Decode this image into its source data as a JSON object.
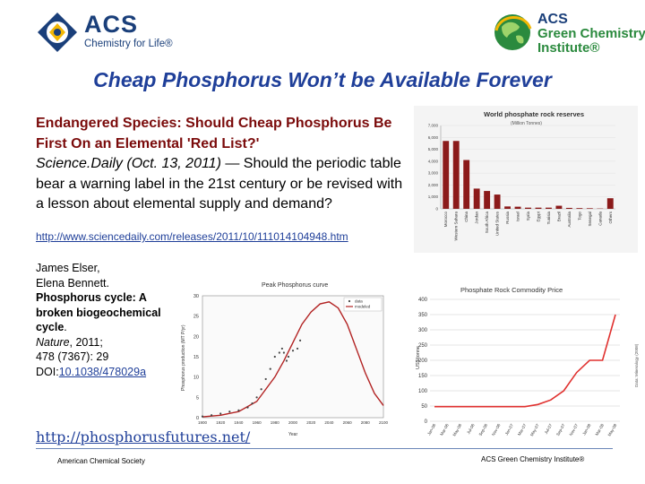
{
  "header": {
    "acs_logo": {
      "name": "ACS",
      "tagline": "Chemistry for Life®"
    },
    "gci_logo": {
      "line1": "ACS",
      "line2": "Green Chemistry",
      "line3": "Institute®"
    }
  },
  "slide": {
    "title": "Cheap Phosphorus Won’t be Available Forever",
    "article": {
      "headline": "Endangered Species: Should Cheap Phosphorus Be First On an Elemental 'Red List?'",
      "source": "Science.Daily (Oct. 13, 2011)",
      "body": " — Should the periodic table bear a warning label in the 21st century or be revised with a lesson about elemental supply and demand?"
    },
    "link1": "http://www.sciencedaily.com/releases/2011/10/111014104948.htm",
    "citation": {
      "authors1": "James Elser,",
      "authors2": "Elena Bennett.",
      "title": "Phosphorus cycle: A broken biogeochemical cycle",
      "title_end": ".",
      "journal": "Nature",
      "year": ", 2011;",
      "volume": "478 (7367): 29",
      "doi_prefix": "DOI:",
      "doi": "10.1038/478029a"
    },
    "link2": "http://phosphorusfutures.net/"
  },
  "footer": {
    "left": "American Chemical Society",
    "right": "ACS Green Chemistry Institute®"
  },
  "colors": {
    "title": "#1f3f99",
    "headline": "#7a0a0a",
    "bars": "#8b1a1a",
    "curve": "#b22222",
    "line": "#e0312f"
  },
  "chart_data": [
    {
      "type": "bar",
      "title": "World phosphate rock reserves",
      "subtitle": "(Million Tonnes)",
      "categories": [
        "Morocco",
        "Western Sahara",
        "China",
        "Jordan",
        "South Africa",
        "United States",
        "Russia",
        "Israel",
        "Syria",
        "Egypt",
        "Tunisia",
        "Brazil",
        "Australia",
        "Togo",
        "Senegal",
        "Canada",
        "Others"
      ],
      "values": [
        5700,
        5700,
        4100,
        1700,
        1500,
        1200,
        200,
        180,
        100,
        100,
        100,
        260,
        80,
        60,
        50,
        25,
        890
      ],
      "yticks": [
        "7,000",
        "6,000",
        "5,000",
        "4,000",
        "3,000",
        "2,000",
        "1,000",
        "0"
      ],
      "ylim": [
        0,
        7000
      ]
    },
    {
      "type": "line",
      "title": "Peak Phosphorus curve",
      "xlabel": "Year",
      "ylabel": "Phosphorus production (MT P/yr)",
      "legend": [
        "data",
        "modeled"
      ],
      "xticks": [
        "1900",
        "1920",
        "1940",
        "1960",
        "1980",
        "2000",
        "2020",
        "2040",
        "2060",
        "2080",
        "2100"
      ],
      "yticks": [
        "30",
        "25",
        "20",
        "15",
        "10",
        "5",
        "0"
      ],
      "xlim": [
        1900,
        2100
      ],
      "ylim": [
        0,
        30
      ],
      "series": [
        {
          "name": "data",
          "x": [
            1900,
            1910,
            1920,
            1930,
            1940,
            1950,
            1955,
            1960,
            1965,
            1970,
            1975,
            1980,
            1985,
            1988,
            1990,
            1993,
            1995,
            2000,
            2005,
            2008
          ],
          "y": [
            0.3,
            0.6,
            1.0,
            1.5,
            1.8,
            2.5,
            3.5,
            5,
            7,
            9.5,
            12,
            15,
            16,
            17,
            16,
            14,
            15,
            16.5,
            17,
            19
          ]
        },
        {
          "name": "modeled",
          "x": [
            1900,
            1920,
            1940,
            1960,
            1980,
            1990,
            2000,
            2010,
            2020,
            2030,
            2040,
            2050,
            2060,
            2070,
            2080,
            2090,
            2100
          ],
          "y": [
            0.2,
            0.6,
            1.5,
            4,
            10,
            14,
            18.5,
            23,
            26,
            28,
            28.5,
            27,
            23,
            17,
            11,
            6,
            3
          ]
        }
      ]
    },
    {
      "type": "line",
      "title": "Phosphate Rock Commodity Price",
      "ylabel": "US$/tonne",
      "source": "Data: Mineralogy (2008)",
      "yticks": [
        "400",
        "350",
        "300",
        "250",
        "200",
        "150",
        "100",
        "50",
        "0"
      ],
      "ylim": [
        0,
        400
      ],
      "x": [
        "Jan-06",
        "Mar-06",
        "May-06",
        "Jul-06",
        "Sep-06",
        "Nov-06",
        "Jan-07",
        "Mar-07",
        "May-07",
        "Jul-07",
        "Sep-07",
        "Nov-07",
        "Jan-08",
        "Mar-08",
        "May-08"
      ],
      "series": [
        {
          "name": "price",
          "values": [
            48,
            48,
            48,
            48,
            48,
            48,
            48,
            48,
            55,
            70,
            100,
            160,
            200,
            200,
            350
          ]
        }
      ]
    }
  ]
}
